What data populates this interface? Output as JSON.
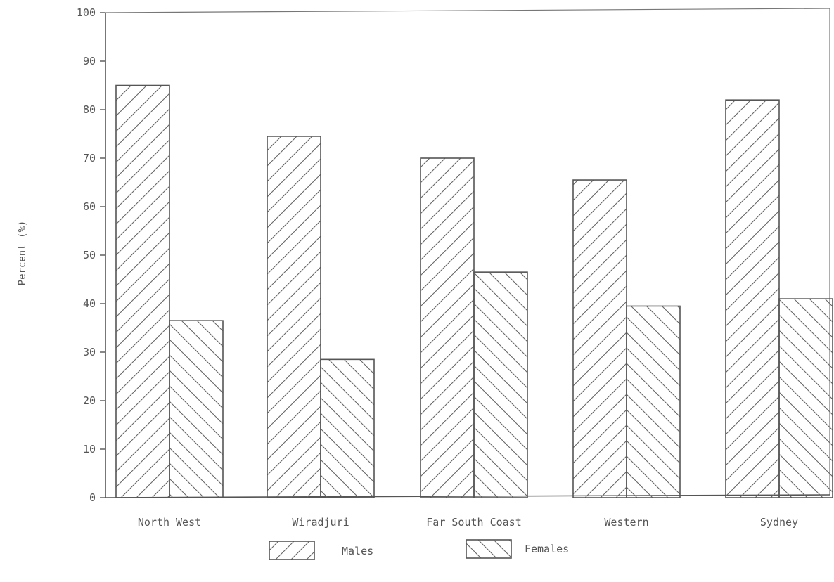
{
  "chart_data": {
    "type": "bar",
    "title": "",
    "xlabel": "",
    "ylabel": "Percent (%)",
    "ylim": [
      0,
      100
    ],
    "yticks": [
      0,
      10,
      20,
      30,
      40,
      50,
      60,
      70,
      80,
      90,
      100
    ],
    "categories": [
      "North West",
      "Wiradjuri",
      "Far South Coast",
      "Western",
      "Sydney"
    ],
    "series": [
      {
        "name": "Males",
        "values": [
          85,
          74.5,
          70,
          65.5,
          82
        ],
        "pattern": "diagonal-up"
      },
      {
        "name": "Females",
        "values": [
          36.5,
          28.5,
          46.5,
          39.5,
          41
        ],
        "pattern": "diagonal-down"
      }
    ],
    "legend_position": "bottom-center",
    "grid": false,
    "colors": {
      "ink": "#555555",
      "background": "#ffffff"
    }
  }
}
